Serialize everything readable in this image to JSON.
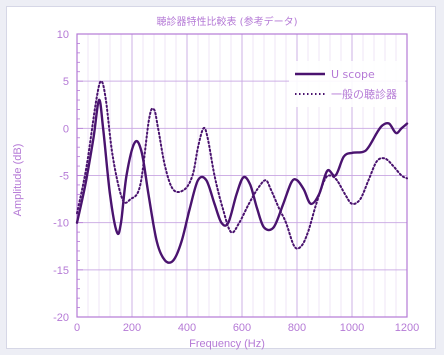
{
  "colors": {
    "accent": "#b57ad6",
    "grid": "#c9a8e3",
    "series": "#4a136f",
    "frame_bg": "#edeef5"
  },
  "chart_data": {
    "type": "line",
    "title": "聴診器特性比較表 (参考データ)",
    "xlabel": "Frequency (Hz)",
    "ylabel": "Amplitude (dB)",
    "xlim": [
      0,
      1200
    ],
    "ylim": [
      -20,
      10
    ],
    "xticks": [
      0,
      200,
      400,
      600,
      800,
      1000,
      1200
    ],
    "yticks": [
      10,
      5,
      0,
      -5,
      -10,
      -15,
      -20
    ],
    "grid": true,
    "legend_position": "top-right",
    "series": [
      {
        "name": "U scope",
        "style": "solid",
        "points": [
          [
            0,
            -10
          ],
          [
            30,
            -6
          ],
          [
            60,
            -1
          ],
          [
            80,
            3
          ],
          [
            95,
            0
          ],
          [
            120,
            -7
          ],
          [
            145,
            -11
          ],
          [
            160,
            -10
          ],
          [
            180,
            -5
          ],
          [
            210,
            -1.5
          ],
          [
            235,
            -2.5
          ],
          [
            260,
            -7
          ],
          [
            290,
            -12
          ],
          [
            320,
            -14
          ],
          [
            350,
            -14
          ],
          [
            380,
            -12
          ],
          [
            410,
            -8.5
          ],
          [
            440,
            -5.5
          ],
          [
            470,
            -5.5
          ],
          [
            500,
            -8
          ],
          [
            525,
            -10
          ],
          [
            550,
            -10
          ],
          [
            580,
            -7
          ],
          [
            605,
            -5.2
          ],
          [
            630,
            -6
          ],
          [
            655,
            -8.5
          ],
          [
            680,
            -10.5
          ],
          [
            715,
            -10.5
          ],
          [
            750,
            -8
          ],
          [
            780,
            -5.7
          ],
          [
            800,
            -5.5
          ],
          [
            825,
            -6.5
          ],
          [
            850,
            -8
          ],
          [
            880,
            -7
          ],
          [
            910,
            -4.5
          ],
          [
            940,
            -5
          ],
          [
            970,
            -3
          ],
          [
            1000,
            -2.6
          ],
          [
            1040,
            -2.5
          ],
          [
            1060,
            -2
          ],
          [
            1090,
            -0.5
          ],
          [
            1110,
            0.3
          ],
          [
            1135,
            0.5
          ],
          [
            1160,
            -0.5
          ],
          [
            1180,
            0
          ],
          [
            1200,
            0.5
          ]
        ]
      },
      {
        "name": "一般の聴診器",
        "style": "dotted",
        "points": [
          [
            0,
            -9
          ],
          [
            35,
            -4
          ],
          [
            70,
            3
          ],
          [
            88,
            5
          ],
          [
            105,
            3
          ],
          [
            130,
            -3
          ],
          [
            165,
            -7.5
          ],
          [
            195,
            -7.5
          ],
          [
            230,
            -6
          ],
          [
            262,
            1
          ],
          [
            280,
            2
          ],
          [
            295,
            0
          ],
          [
            320,
            -4
          ],
          [
            350,
            -6.5
          ],
          [
            390,
            -6.5
          ],
          [
            420,
            -5
          ],
          [
            440,
            -2
          ],
          [
            460,
            0
          ],
          [
            475,
            -1
          ],
          [
            500,
            -5
          ],
          [
            530,
            -8.5
          ],
          [
            560,
            -11
          ],
          [
            590,
            -10
          ],
          [
            625,
            -8
          ],
          [
            655,
            -6.5
          ],
          [
            685,
            -5.5
          ],
          [
            705,
            -6.5
          ],
          [
            735,
            -8.5
          ],
          [
            760,
            -10
          ],
          [
            790,
            -12.5
          ],
          [
            815,
            -12.5
          ],
          [
            840,
            -11
          ],
          [
            870,
            -8
          ],
          [
            900,
            -5.5
          ],
          [
            920,
            -5
          ],
          [
            945,
            -5.5
          ],
          [
            975,
            -7
          ],
          [
            1000,
            -8
          ],
          [
            1030,
            -7.5
          ],
          [
            1060,
            -5.5
          ],
          [
            1090,
            -3.5
          ],
          [
            1120,
            -3.2
          ],
          [
            1150,
            -4
          ],
          [
            1180,
            -5
          ],
          [
            1200,
            -5.3
          ]
        ]
      }
    ]
  }
}
